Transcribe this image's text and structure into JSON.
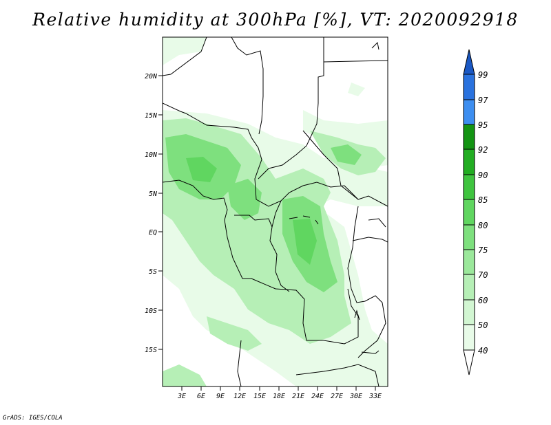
{
  "title": "Relative humidity at 300hPa [%], VT: 2020092918",
  "credit": "GrADS: IGES/COLA",
  "map": {
    "lat_labels": [
      "20N",
      "15N",
      "10N",
      "5N",
      "EQ",
      "5S",
      "10S",
      "15S"
    ],
    "lon_labels": [
      "3E",
      "6E",
      "9E",
      "12E",
      "15E",
      "18E",
      "21E",
      "24E",
      "27E",
      "30E",
      "33E"
    ]
  },
  "colorbar": {
    "levels": [
      "40",
      "50",
      "60",
      "70",
      "75",
      "80",
      "85",
      "90",
      "92",
      "95",
      "97",
      "99"
    ],
    "colors": {
      "below40": "#ffffff",
      "40-50": "#e8fbe8",
      "50-60": "#d2f6d2",
      "60-70": "#b6efb6",
      "70-75": "#9be89b",
      "75-80": "#7ee07e",
      "80-85": "#60d660",
      "85-90": "#3fc43f",
      "90-92": "#22ad22",
      "92-95": "#139413",
      "95-97": "#3d8ef0",
      "97-99": "#2a72de",
      "above99": "#1a58c4"
    }
  }
}
